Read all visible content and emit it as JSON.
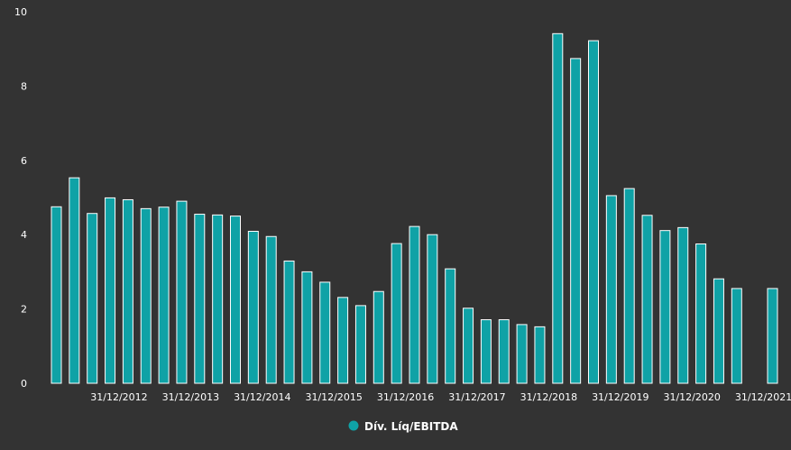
{
  "colors": {
    "background": "#333333",
    "bar": "#0fa2a6",
    "bar_outline": "#ffffff",
    "text": "#ffffff"
  },
  "chart_data": {
    "type": "bar",
    "title": "",
    "xlabel": "",
    "ylabel": "",
    "ylim": [
      0,
      10
    ],
    "yticks": [
      0,
      2,
      4,
      6,
      8,
      10
    ],
    "grid": false,
    "legend_position": "bottom-center",
    "x_tick_labels": [
      "31/12/2012",
      "31/12/2013",
      "31/12/2014",
      "31/12/2015",
      "31/12/2016",
      "31/12/2017",
      "31/12/2018",
      "31/12/2019",
      "31/12/2020",
      "31/12/2021"
    ],
    "x_tick_positions": [
      4,
      8,
      12,
      16,
      20,
      24,
      28,
      32,
      36,
      40
    ],
    "series": [
      {
        "name": "Dív. Líq/EBITDA",
        "values": [
          4.75,
          5.53,
          4.57,
          4.99,
          4.94,
          4.7,
          4.74,
          4.9,
          4.55,
          4.53,
          4.5,
          4.09,
          3.95,
          3.29,
          3.0,
          2.72,
          2.31,
          2.09,
          2.47,
          3.76,
          4.22,
          4.0,
          3.08,
          2.02,
          1.71,
          1.71,
          1.58,
          1.52,
          9.41,
          8.74,
          9.22,
          5.05,
          5.24,
          4.52,
          4.11,
          4.19,
          3.75,
          2.81,
          2.55,
          null,
          2.55
        ]
      }
    ]
  }
}
